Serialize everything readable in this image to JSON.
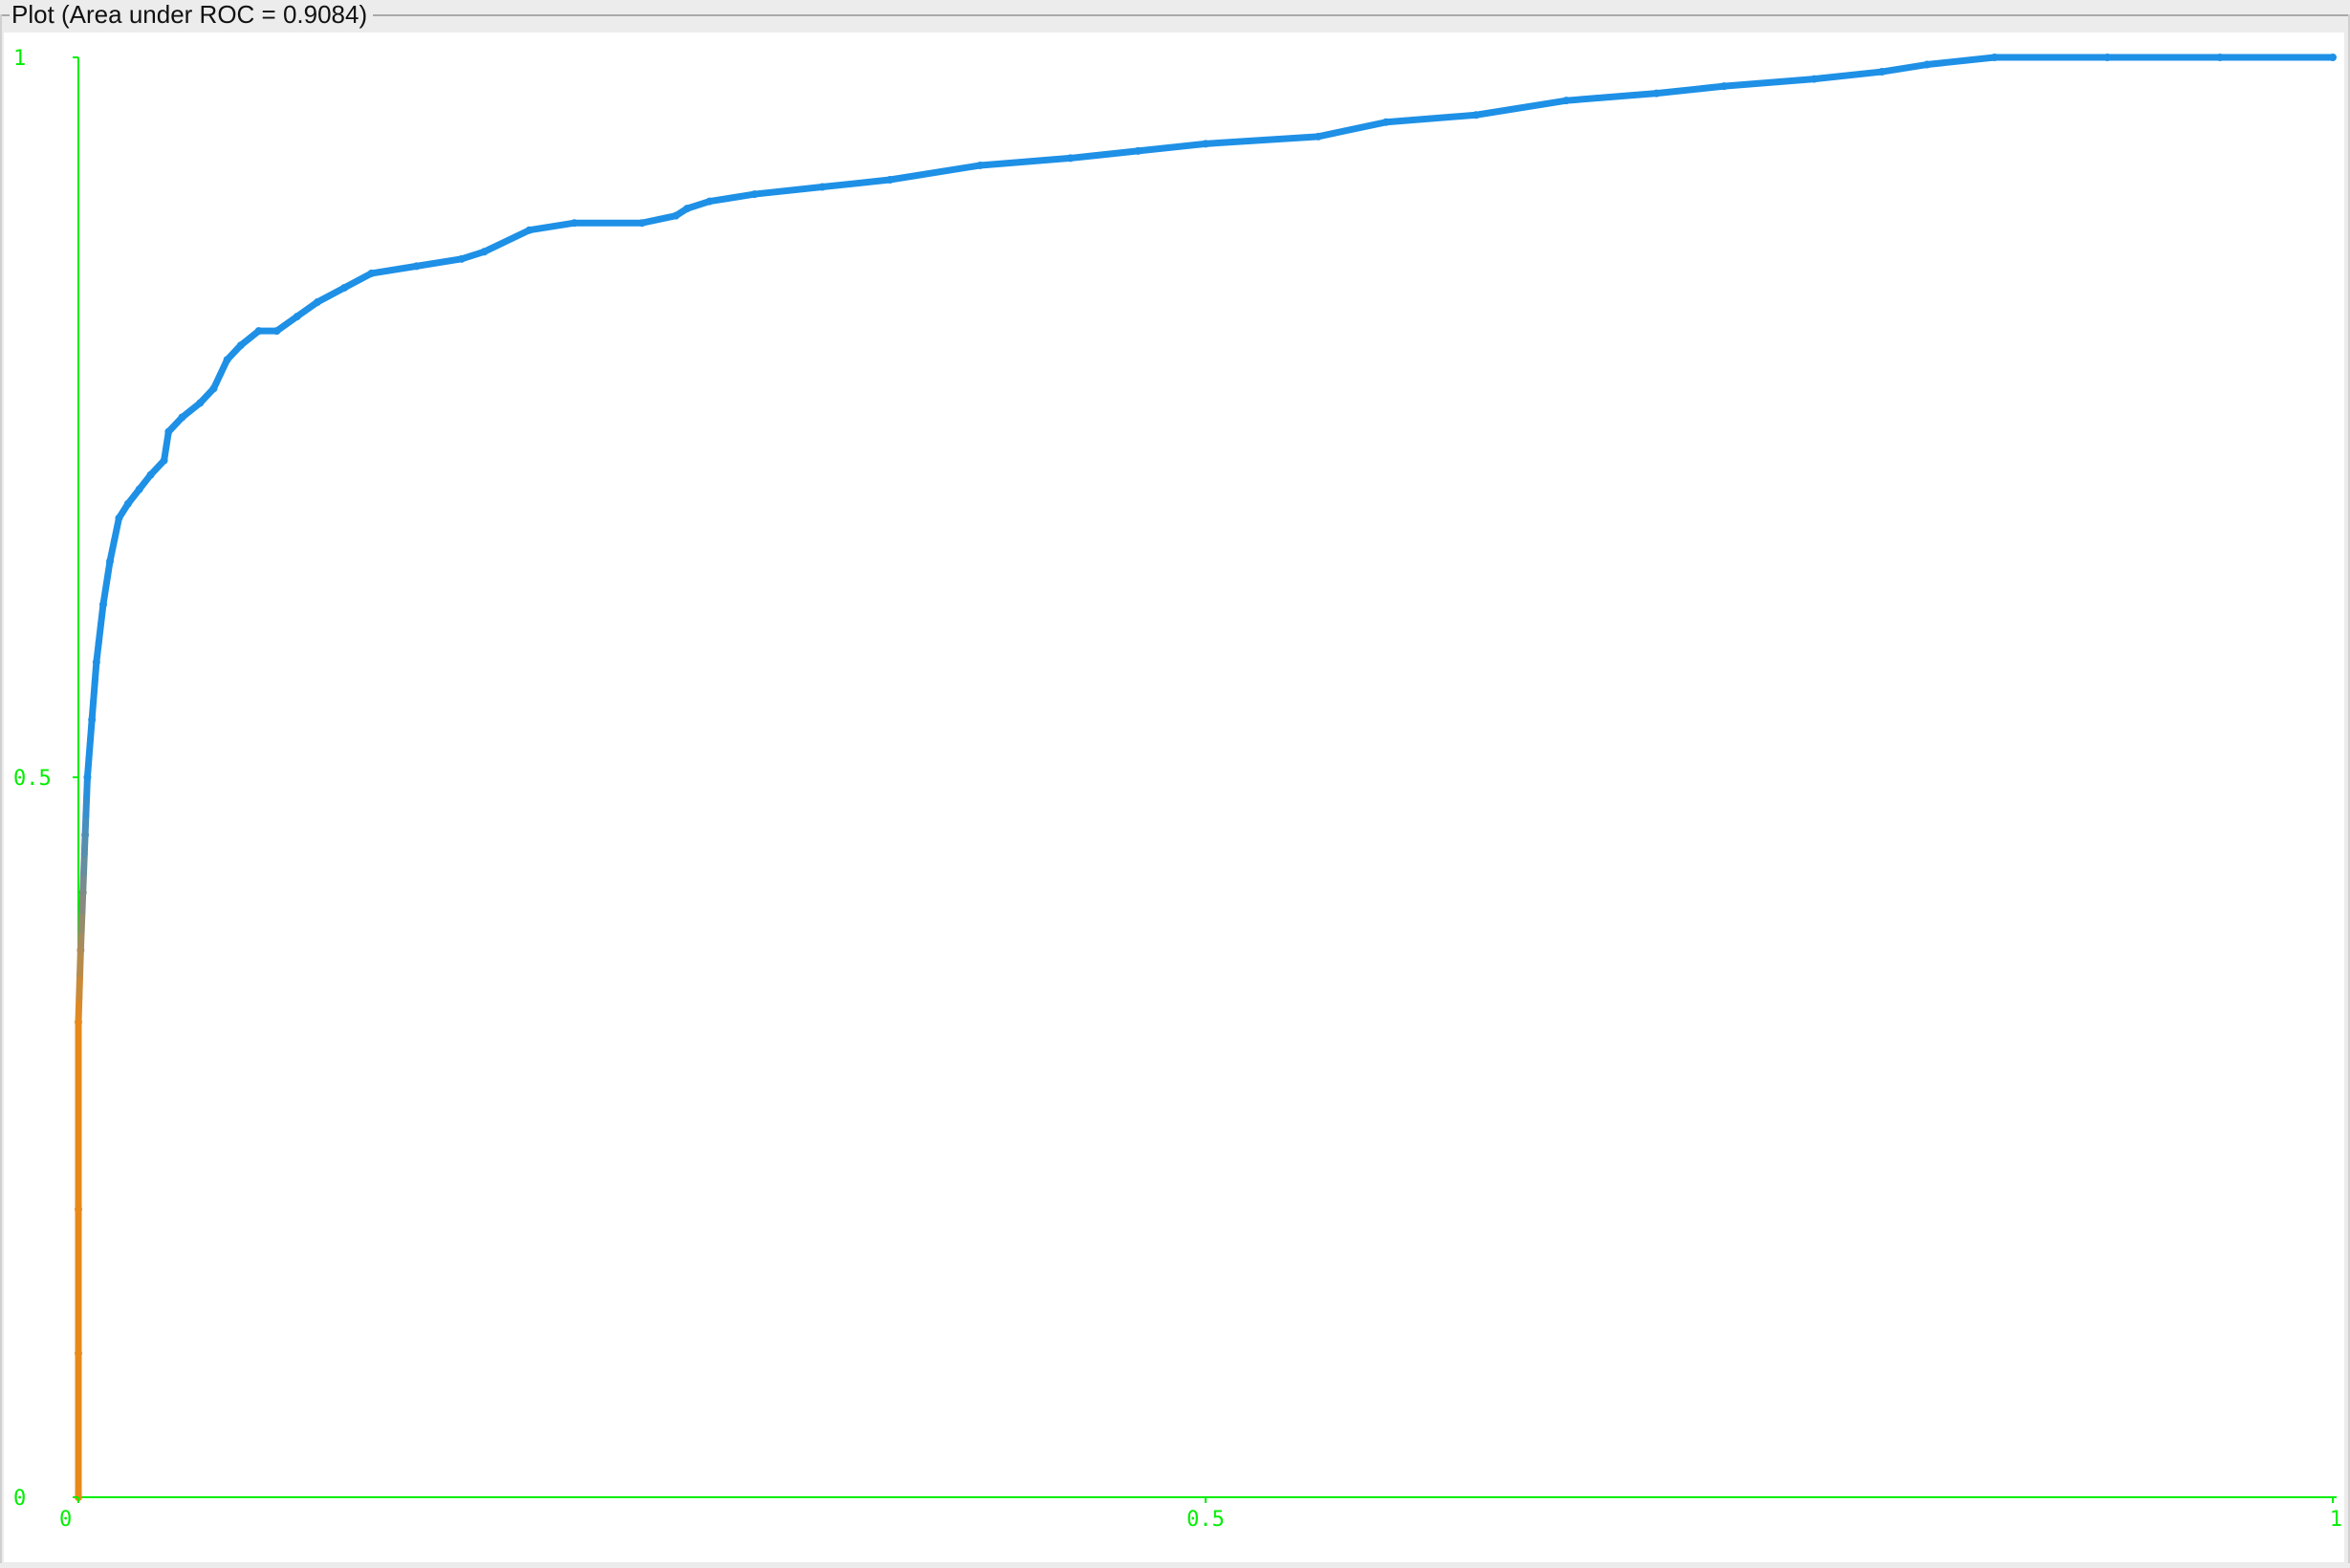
{
  "panel": {
    "title": "Plot (Area under ROC = 0.9084)"
  },
  "colors": {
    "axis": "#00ee00",
    "curve_low": "#e8891a",
    "curve_high": "#1e90e6"
  },
  "chart_data": {
    "type": "line",
    "title": "",
    "xlabel": "",
    "ylabel": "",
    "xlim": [
      0,
      1
    ],
    "ylim": [
      0,
      1
    ],
    "grid": false,
    "legend": "none",
    "x_ticks": [
      "0",
      "0.5",
      "1"
    ],
    "y_ticks": [
      "0",
      "0.5",
      "1"
    ],
    "series": [
      {
        "x": [
          0,
          0,
          0,
          0,
          0.001,
          0.002,
          0.003,
          0.004,
          0.006,
          0.008,
          0.011,
          0.014,
          0.018,
          0.022,
          0.027,
          0.032,
          0.038,
          0.04,
          0.046,
          0.054,
          0.06,
          0.066,
          0.072,
          0.08,
          0.088,
          0.097,
          0.106,
          0.118,
          0.13,
          0.15,
          0.17,
          0.18,
          0.2,
          0.22,
          0.25,
          0.265,
          0.27,
          0.28,
          0.3,
          0.33,
          0.36,
          0.4,
          0.44,
          0.47,
          0.5,
          0.55,
          0.58,
          0.62,
          0.66,
          0.7,
          0.73,
          0.77,
          0.8,
          0.82,
          0.85,
          0.9,
          0.95,
          1.0
        ],
        "y": [
          0,
          0.1,
          0.2,
          0.33,
          0.38,
          0.42,
          0.46,
          0.5,
          0.54,
          0.58,
          0.62,
          0.65,
          0.68,
          0.69,
          0.7,
          0.71,
          0.72,
          0.74,
          0.75,
          0.76,
          0.77,
          0.79,
          0.8,
          0.81,
          0.81,
          0.82,
          0.83,
          0.84,
          0.85,
          0.855,
          0.86,
          0.865,
          0.88,
          0.885,
          0.885,
          0.89,
          0.895,
          0.9,
          0.905,
          0.91,
          0.915,
          0.925,
          0.93,
          0.935,
          0.94,
          0.945,
          0.955,
          0.96,
          0.97,
          0.975,
          0.98,
          0.985,
          0.99,
          0.995,
          1.0,
          1.0,
          1.0,
          1.0
        ]
      }
    ]
  }
}
